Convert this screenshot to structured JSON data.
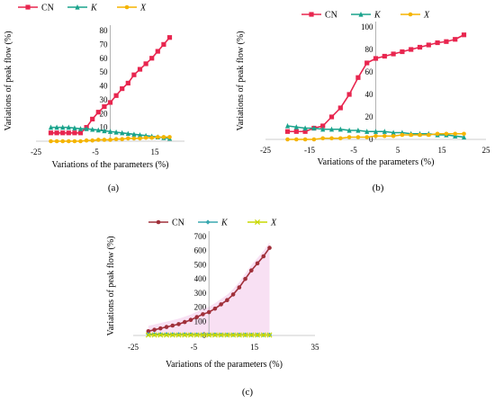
{
  "chart_data": [
    {
      "panel_label": "(a)",
      "type": "line",
      "xlabel": "Variations of the parameters (%)",
      "ylabel": "Variations of peak flow (%)",
      "xlim": [
        -25,
        25
      ],
      "ylim": [
        0,
        80
      ],
      "x_ticks": [
        "-25",
        "-5",
        "15"
      ],
      "y_ticks": [
        "10",
        "20",
        "30",
        "40",
        "50",
        "60",
        "70",
        "80"
      ],
      "x": [
        -20,
        -18,
        -16,
        -14,
        -12,
        -10,
        -8,
        -6,
        -4,
        -2,
        0,
        2,
        4,
        6,
        8,
        10,
        12,
        14,
        16,
        18,
        20
      ],
      "series": [
        {
          "name": "CN",
          "color": "#e8264f",
          "marker": "square",
          "values": [
            6,
            6,
            6,
            6,
            6,
            6,
            10,
            16,
            21,
            25,
            28,
            33,
            38,
            42,
            48,
            52,
            56,
            60,
            65,
            70,
            75
          ]
        },
        {
          "name": "K",
          "color": "#1aa38c",
          "marker": "triangle",
          "values": [
            10,
            10,
            10,
            10,
            9.5,
            9,
            9,
            8.5,
            8,
            7.5,
            7,
            6.5,
            6,
            5.5,
            5,
            4.5,
            4,
            3.5,
            3,
            2.5,
            2
          ]
        },
        {
          "name": "X",
          "color": "#f5b400",
          "marker": "circle",
          "values": [
            0,
            0,
            0,
            0,
            0,
            0,
            0.5,
            0.5,
            1,
            1,
            1,
            1.5,
            1.5,
            2,
            2,
            2,
            2.5,
            2.5,
            3,
            3,
            3
          ]
        }
      ]
    },
    {
      "panel_label": "(b)",
      "type": "line",
      "xlabel": "Variations of the parameters (%)",
      "ylabel": "Variations of peak flow (%)",
      "xlim": [
        -25,
        25
      ],
      "ylim": [
        0,
        100
      ],
      "x_ticks": [
        "-25",
        "-15",
        "-5",
        "5",
        "15",
        "25"
      ],
      "y_ticks": [
        "0",
        "20",
        "40",
        "60",
        "80",
        "100"
      ],
      "x": [
        -20,
        -18,
        -16,
        -14,
        -12,
        -10,
        -8,
        -6,
        -4,
        -2,
        0,
        2,
        4,
        6,
        8,
        10,
        12,
        14,
        16,
        18,
        20
      ],
      "series": [
        {
          "name": "CN",
          "color": "#e8264f",
          "marker": "square",
          "values": [
            7,
            7,
            7,
            10,
            12,
            20,
            28,
            40,
            55,
            68,
            72,
            74,
            76,
            78,
            80,
            82,
            84,
            86,
            87,
            89,
            93
          ]
        },
        {
          "name": "K",
          "color": "#1aa38c",
          "marker": "triangle",
          "values": [
            12,
            11,
            10,
            10,
            9,
            9,
            9,
            8,
            8,
            7,
            7,
            7,
            6,
            6,
            5,
            5,
            5,
            4,
            4,
            3,
            2
          ]
        },
        {
          "name": "X",
          "color": "#f5b400",
          "marker": "circle",
          "values": [
            0,
            0,
            0,
            0,
            1,
            1,
            1,
            2,
            2,
            2,
            3,
            3,
            3,
            4,
            4,
            4,
            4,
            5,
            5,
            5,
            5
          ]
        }
      ]
    },
    {
      "panel_label": "(c)",
      "type": "line",
      "xlabel": "Variations of the parameters (%)",
      "ylabel": "Variations of peak flow (%)",
      "xlim": [
        -25,
        35
      ],
      "ylim": [
        0,
        700
      ],
      "x_ticks": [
        "-25",
        "-5",
        "15",
        "35"
      ],
      "y_ticks": [
        "0",
        "100",
        "200",
        "300",
        "400",
        "500",
        "600",
        "700"
      ],
      "x": [
        -20,
        -18,
        -16,
        -14,
        -12,
        -10,
        -8,
        -6,
        -4,
        -2,
        0,
        2,
        4,
        6,
        8,
        10,
        12,
        14,
        16,
        18,
        20
      ],
      "series": [
        {
          "name": "CN",
          "color": "#a0303a",
          "marker": "circle",
          "values": [
            30,
            40,
            50,
            60,
            70,
            80,
            95,
            110,
            130,
            150,
            165,
            190,
            220,
            250,
            290,
            340,
            400,
            460,
            510,
            560,
            620
          ]
        },
        {
          "name": "K",
          "color": "#3aa8b0",
          "marker": "diamond",
          "values": [
            8,
            8,
            8,
            8,
            7,
            7,
            7,
            7,
            6,
            6,
            6,
            6,
            5,
            5,
            5,
            5,
            5,
            4,
            4,
            4,
            4
          ]
        },
        {
          "name": "X",
          "color": "#c8d800",
          "marker": "x",
          "values": [
            3,
            3,
            3,
            3,
            3,
            3,
            3,
            3,
            3,
            3,
            3,
            3,
            3,
            3,
            3,
            3,
            3,
            3,
            3,
            3,
            3
          ]
        }
      ]
    }
  ]
}
